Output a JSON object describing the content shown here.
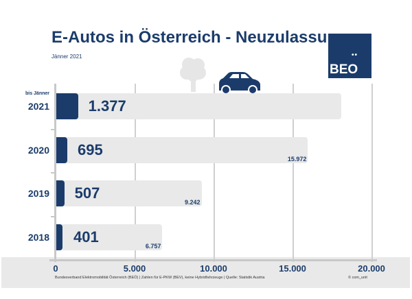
{
  "header": {
    "title": "E-Autos in Österreich - Neuzulassungen",
    "subtitle": "Jänner 2021",
    "logo_text": "BEO",
    "logo_dots": "••"
  },
  "footer": {
    "source": "Bundesverband Elektromobilität Österreich (BEÖ) | Zahlen für E-PKW (BEV), keine Hybridfahrzeuge | Quelle: Statistik Austria",
    "copyright": "© com_unit"
  },
  "colors": {
    "accent": "#1b3c6b",
    "bar_background": "#e9e9e9",
    "grid": "#cfcfcf"
  },
  "icons": [
    "tree-icon",
    "car-icon"
  ],
  "chart_data": {
    "type": "bar",
    "orientation": "horizontal",
    "title": "E-Autos in Österreich - Neuzulassungen",
    "subtitle": "Jänner 2021",
    "categories": [
      "2021",
      "2020",
      "2019",
      "2018"
    ],
    "category_notes": [
      "bis Jänner",
      "",
      "",
      ""
    ],
    "series": [
      {
        "values": [
          1377,
          695,
          507,
          401
        ],
        "labels": [
          "1.377",
          "695",
          "507",
          "401"
        ]
      },
      {
        "values": [
          18100,
          15972,
          9242,
          6757
        ],
        "labels": [
          "",
          "15.972",
          "9.242",
          "6.757"
        ]
      }
    ],
    "xlim": [
      0,
      20000
    ],
    "xticks": [
      0,
      5000,
      10000,
      15000,
      20000
    ],
    "xtick_labels": [
      "0",
      "5.000",
      "10.000",
      "15.000",
      "20.000"
    ],
    "grid": true,
    "legend": "none"
  }
}
